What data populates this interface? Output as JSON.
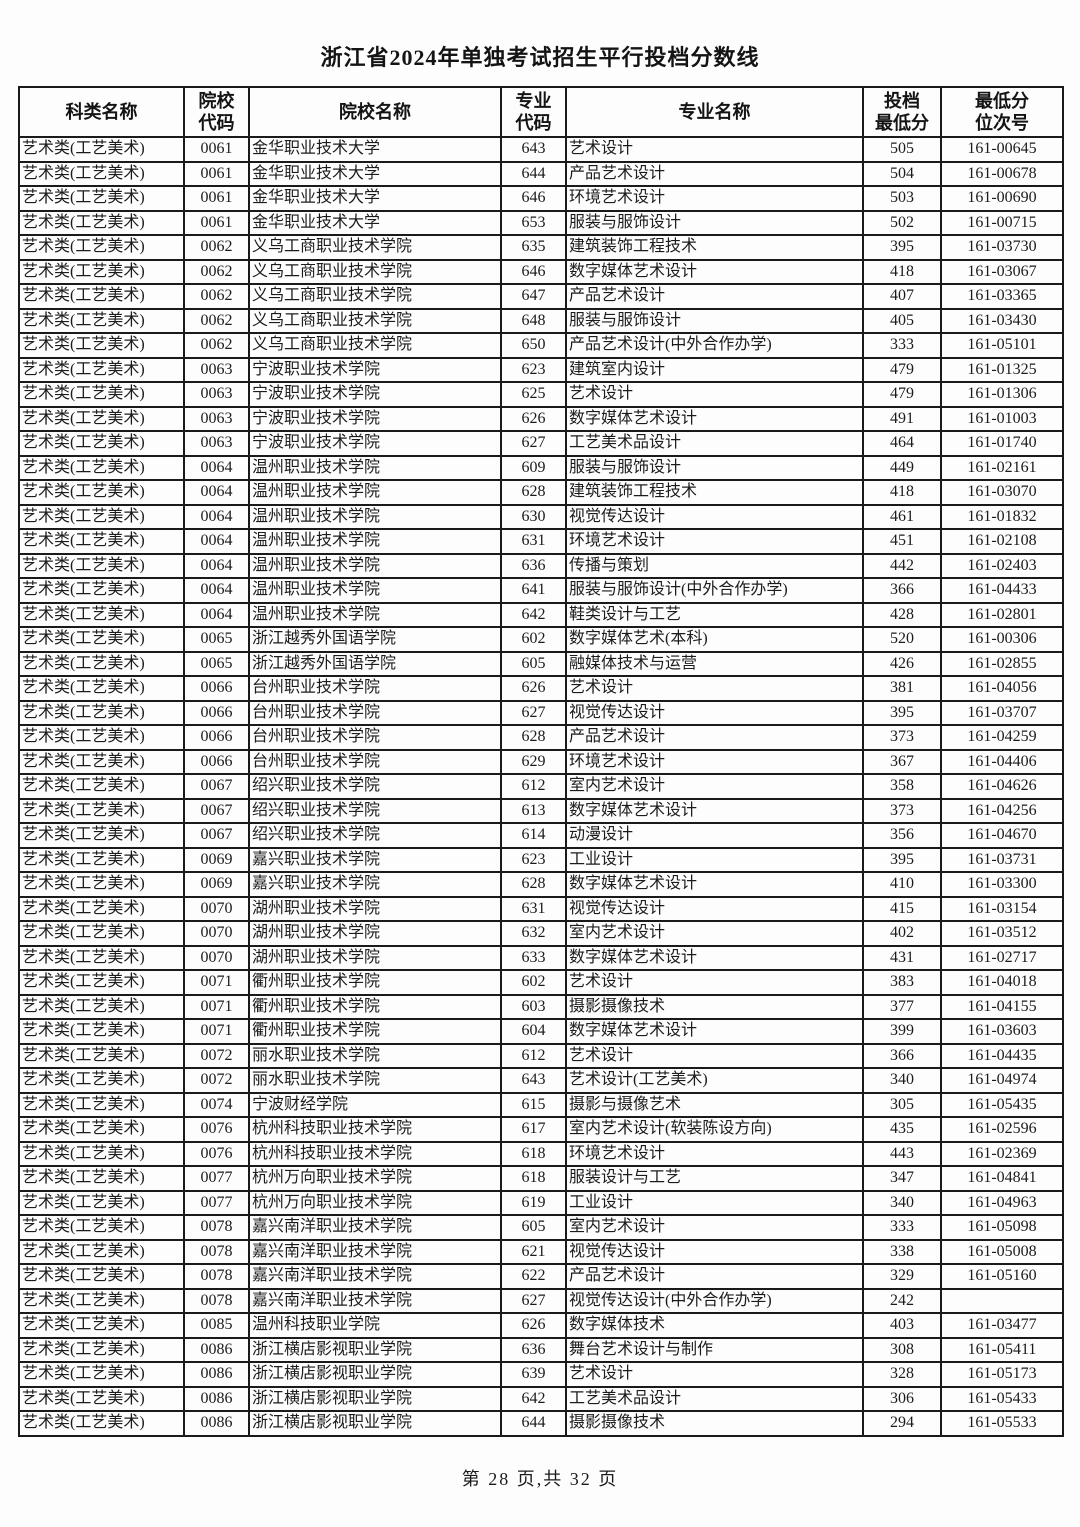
{
  "title": "浙江省2024年单独考试招生平行投档分数线",
  "footer": "第 28 页,共 32 页",
  "table": {
    "headers": [
      "科类名称",
      "院校\n代码",
      "院校名称",
      "专业\n代码",
      "专业名称",
      "投档\n最低分",
      "最低分\n位次号"
    ],
    "rows": [
      [
        "艺术类(工艺美术)",
        "0061",
        "金华职业技术大学",
        "643",
        "艺术设计",
        "505",
        "161-00645"
      ],
      [
        "艺术类(工艺美术)",
        "0061",
        "金华职业技术大学",
        "644",
        "产品艺术设计",
        "504",
        "161-00678"
      ],
      [
        "艺术类(工艺美术)",
        "0061",
        "金华职业技术大学",
        "646",
        "环境艺术设计",
        "503",
        "161-00690"
      ],
      [
        "艺术类(工艺美术)",
        "0061",
        "金华职业技术大学",
        "653",
        "服装与服饰设计",
        "502",
        "161-00715"
      ],
      [
        "艺术类(工艺美术)",
        "0062",
        "义乌工商职业技术学院",
        "635",
        "建筑装饰工程技术",
        "395",
        "161-03730"
      ],
      [
        "艺术类(工艺美术)",
        "0062",
        "义乌工商职业技术学院",
        "646",
        "数字媒体艺术设计",
        "418",
        "161-03067"
      ],
      [
        "艺术类(工艺美术)",
        "0062",
        "义乌工商职业技术学院",
        "647",
        "产品艺术设计",
        "407",
        "161-03365"
      ],
      [
        "艺术类(工艺美术)",
        "0062",
        "义乌工商职业技术学院",
        "648",
        "服装与服饰设计",
        "405",
        "161-03430"
      ],
      [
        "艺术类(工艺美术)",
        "0062",
        "义乌工商职业技术学院",
        "650",
        "产品艺术设计(中外合作办学)",
        "333",
        "161-05101"
      ],
      [
        "艺术类(工艺美术)",
        "0063",
        "宁波职业技术学院",
        "623",
        "建筑室内设计",
        "479",
        "161-01325"
      ],
      [
        "艺术类(工艺美术)",
        "0063",
        "宁波职业技术学院",
        "625",
        "艺术设计",
        "479",
        "161-01306"
      ],
      [
        "艺术类(工艺美术)",
        "0063",
        "宁波职业技术学院",
        "626",
        "数字媒体艺术设计",
        "491",
        "161-01003"
      ],
      [
        "艺术类(工艺美术)",
        "0063",
        "宁波职业技术学院",
        "627",
        "工艺美术品设计",
        "464",
        "161-01740"
      ],
      [
        "艺术类(工艺美术)",
        "0064",
        "温州职业技术学院",
        "609",
        "服装与服饰设计",
        "449",
        "161-02161"
      ],
      [
        "艺术类(工艺美术)",
        "0064",
        "温州职业技术学院",
        "628",
        "建筑装饰工程技术",
        "418",
        "161-03070"
      ],
      [
        "艺术类(工艺美术)",
        "0064",
        "温州职业技术学院",
        "630",
        "视觉传达设计",
        "461",
        "161-01832"
      ],
      [
        "艺术类(工艺美术)",
        "0064",
        "温州职业技术学院",
        "631",
        "环境艺术设计",
        "451",
        "161-02108"
      ],
      [
        "艺术类(工艺美术)",
        "0064",
        "温州职业技术学院",
        "636",
        "传播与策划",
        "442",
        "161-02403"
      ],
      [
        "艺术类(工艺美术)",
        "0064",
        "温州职业技术学院",
        "641",
        "服装与服饰设计(中外合作办学)",
        "366",
        "161-04433"
      ],
      [
        "艺术类(工艺美术)",
        "0064",
        "温州职业技术学院",
        "642",
        "鞋类设计与工艺",
        "428",
        "161-02801"
      ],
      [
        "艺术类(工艺美术)",
        "0065",
        "浙江越秀外国语学院",
        "602",
        "数字媒体艺术(本科)",
        "520",
        "161-00306"
      ],
      [
        "艺术类(工艺美术)",
        "0065",
        "浙江越秀外国语学院",
        "605",
        "融媒体技术与运营",
        "426",
        "161-02855"
      ],
      [
        "艺术类(工艺美术)",
        "0066",
        "台州职业技术学院",
        "626",
        "艺术设计",
        "381",
        "161-04056"
      ],
      [
        "艺术类(工艺美术)",
        "0066",
        "台州职业技术学院",
        "627",
        "视觉传达设计",
        "395",
        "161-03707"
      ],
      [
        "艺术类(工艺美术)",
        "0066",
        "台州职业技术学院",
        "628",
        "产品艺术设计",
        "373",
        "161-04259"
      ],
      [
        "艺术类(工艺美术)",
        "0066",
        "台州职业技术学院",
        "629",
        "环境艺术设计",
        "367",
        "161-04406"
      ],
      [
        "艺术类(工艺美术)",
        "0067",
        "绍兴职业技术学院",
        "612",
        "室内艺术设计",
        "358",
        "161-04626"
      ],
      [
        "艺术类(工艺美术)",
        "0067",
        "绍兴职业技术学院",
        "613",
        "数字媒体艺术设计",
        "373",
        "161-04256"
      ],
      [
        "艺术类(工艺美术)",
        "0067",
        "绍兴职业技术学院",
        "614",
        "动漫设计",
        "356",
        "161-04670"
      ],
      [
        "艺术类(工艺美术)",
        "0069",
        "嘉兴职业技术学院",
        "623",
        "工业设计",
        "395",
        "161-03731"
      ],
      [
        "艺术类(工艺美术)",
        "0069",
        "嘉兴职业技术学院",
        "628",
        "数字媒体艺术设计",
        "410",
        "161-03300"
      ],
      [
        "艺术类(工艺美术)",
        "0070",
        "湖州职业技术学院",
        "631",
        "视觉传达设计",
        "415",
        "161-03154"
      ],
      [
        "艺术类(工艺美术)",
        "0070",
        "湖州职业技术学院",
        "632",
        "室内艺术设计",
        "402",
        "161-03512"
      ],
      [
        "艺术类(工艺美术)",
        "0070",
        "湖州职业技术学院",
        "633",
        "数字媒体艺术设计",
        "431",
        "161-02717"
      ],
      [
        "艺术类(工艺美术)",
        "0071",
        "衢州职业技术学院",
        "602",
        "艺术设计",
        "383",
        "161-04018"
      ],
      [
        "艺术类(工艺美术)",
        "0071",
        "衢州职业技术学院",
        "603",
        "摄影摄像技术",
        "377",
        "161-04155"
      ],
      [
        "艺术类(工艺美术)",
        "0071",
        "衢州职业技术学院",
        "604",
        "数字媒体艺术设计",
        "399",
        "161-03603"
      ],
      [
        "艺术类(工艺美术)",
        "0072",
        "丽水职业技术学院",
        "612",
        "艺术设计",
        "366",
        "161-04435"
      ],
      [
        "艺术类(工艺美术)",
        "0072",
        "丽水职业技术学院",
        "643",
        "艺术设计(工艺美术)",
        "340",
        "161-04974"
      ],
      [
        "艺术类(工艺美术)",
        "0074",
        "宁波财经学院",
        "615",
        "摄影与摄像艺术",
        "305",
        "161-05435"
      ],
      [
        "艺术类(工艺美术)",
        "0076",
        "杭州科技职业技术学院",
        "617",
        "室内艺术设计(软装陈设方向)",
        "435",
        "161-02596"
      ],
      [
        "艺术类(工艺美术)",
        "0076",
        "杭州科技职业技术学院",
        "618",
        "环境艺术设计",
        "443",
        "161-02369"
      ],
      [
        "艺术类(工艺美术)",
        "0077",
        "杭州万向职业技术学院",
        "618",
        "服装设计与工艺",
        "347",
        "161-04841"
      ],
      [
        "艺术类(工艺美术)",
        "0077",
        "杭州万向职业技术学院",
        "619",
        "工业设计",
        "340",
        "161-04963"
      ],
      [
        "艺术类(工艺美术)",
        "0078",
        "嘉兴南洋职业技术学院",
        "605",
        "室内艺术设计",
        "333",
        "161-05098"
      ],
      [
        "艺术类(工艺美术)",
        "0078",
        "嘉兴南洋职业技术学院",
        "621",
        "视觉传达设计",
        "338",
        "161-05008"
      ],
      [
        "艺术类(工艺美术)",
        "0078",
        "嘉兴南洋职业技术学院",
        "622",
        "产品艺术设计",
        "329",
        "161-05160"
      ],
      [
        "艺术类(工艺美术)",
        "0078",
        "嘉兴南洋职业技术学院",
        "627",
        "视觉传达设计(中外合作办学)",
        "242",
        ""
      ],
      [
        "艺术类(工艺美术)",
        "0085",
        "温州科技职业学院",
        "626",
        "数字媒体技术",
        "403",
        "161-03477"
      ],
      [
        "艺术类(工艺美术)",
        "0086",
        "浙江横店影视职业学院",
        "636",
        "舞台艺术设计与制作",
        "308",
        "161-05411"
      ],
      [
        "艺术类(工艺美术)",
        "0086",
        "浙江横店影视职业学院",
        "639",
        "艺术设计",
        "328",
        "161-05173"
      ],
      [
        "艺术类(工艺美术)",
        "0086",
        "浙江横店影视职业学院",
        "642",
        "工艺美术品设计",
        "306",
        "161-05433"
      ],
      [
        "艺术类(工艺美术)",
        "0086",
        "浙江横店影视职业学院",
        "644",
        "摄影摄像技术",
        "294",
        "161-05533"
      ]
    ]
  }
}
